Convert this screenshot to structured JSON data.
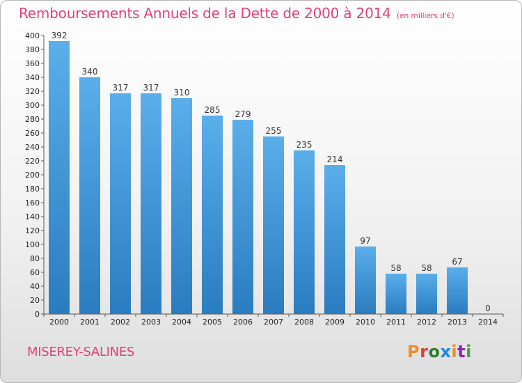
{
  "header": {
    "title": "Remboursements Annuels de la Dette de 2000 à 2014",
    "subtitle": "(en milliers d'€)"
  },
  "footer": {
    "city": "MISEREY-SALINES",
    "brand": "Proxiti",
    "brand_colors": [
      "#f28c28",
      "#e53935",
      "#2e7d32",
      "#1e88e5",
      "#f28c28",
      "#8e24aa",
      "#43a047"
    ]
  },
  "chart_data": {
    "type": "bar",
    "categories": [
      "2000",
      "2001",
      "2002",
      "2003",
      "2004",
      "2005",
      "2006",
      "2007",
      "2008",
      "2009",
      "2010",
      "2011",
      "2012",
      "2013",
      "2014"
    ],
    "values": [
      392,
      340,
      317,
      317,
      310,
      285,
      279,
      255,
      235,
      214,
      97,
      58,
      58,
      67,
      0
    ],
    "ylim": [
      0,
      400
    ],
    "ytick_step": 20,
    "grid": false,
    "bar_color_top": "#5aaeea",
    "bar_color_bottom": "#2a7cc0"
  }
}
